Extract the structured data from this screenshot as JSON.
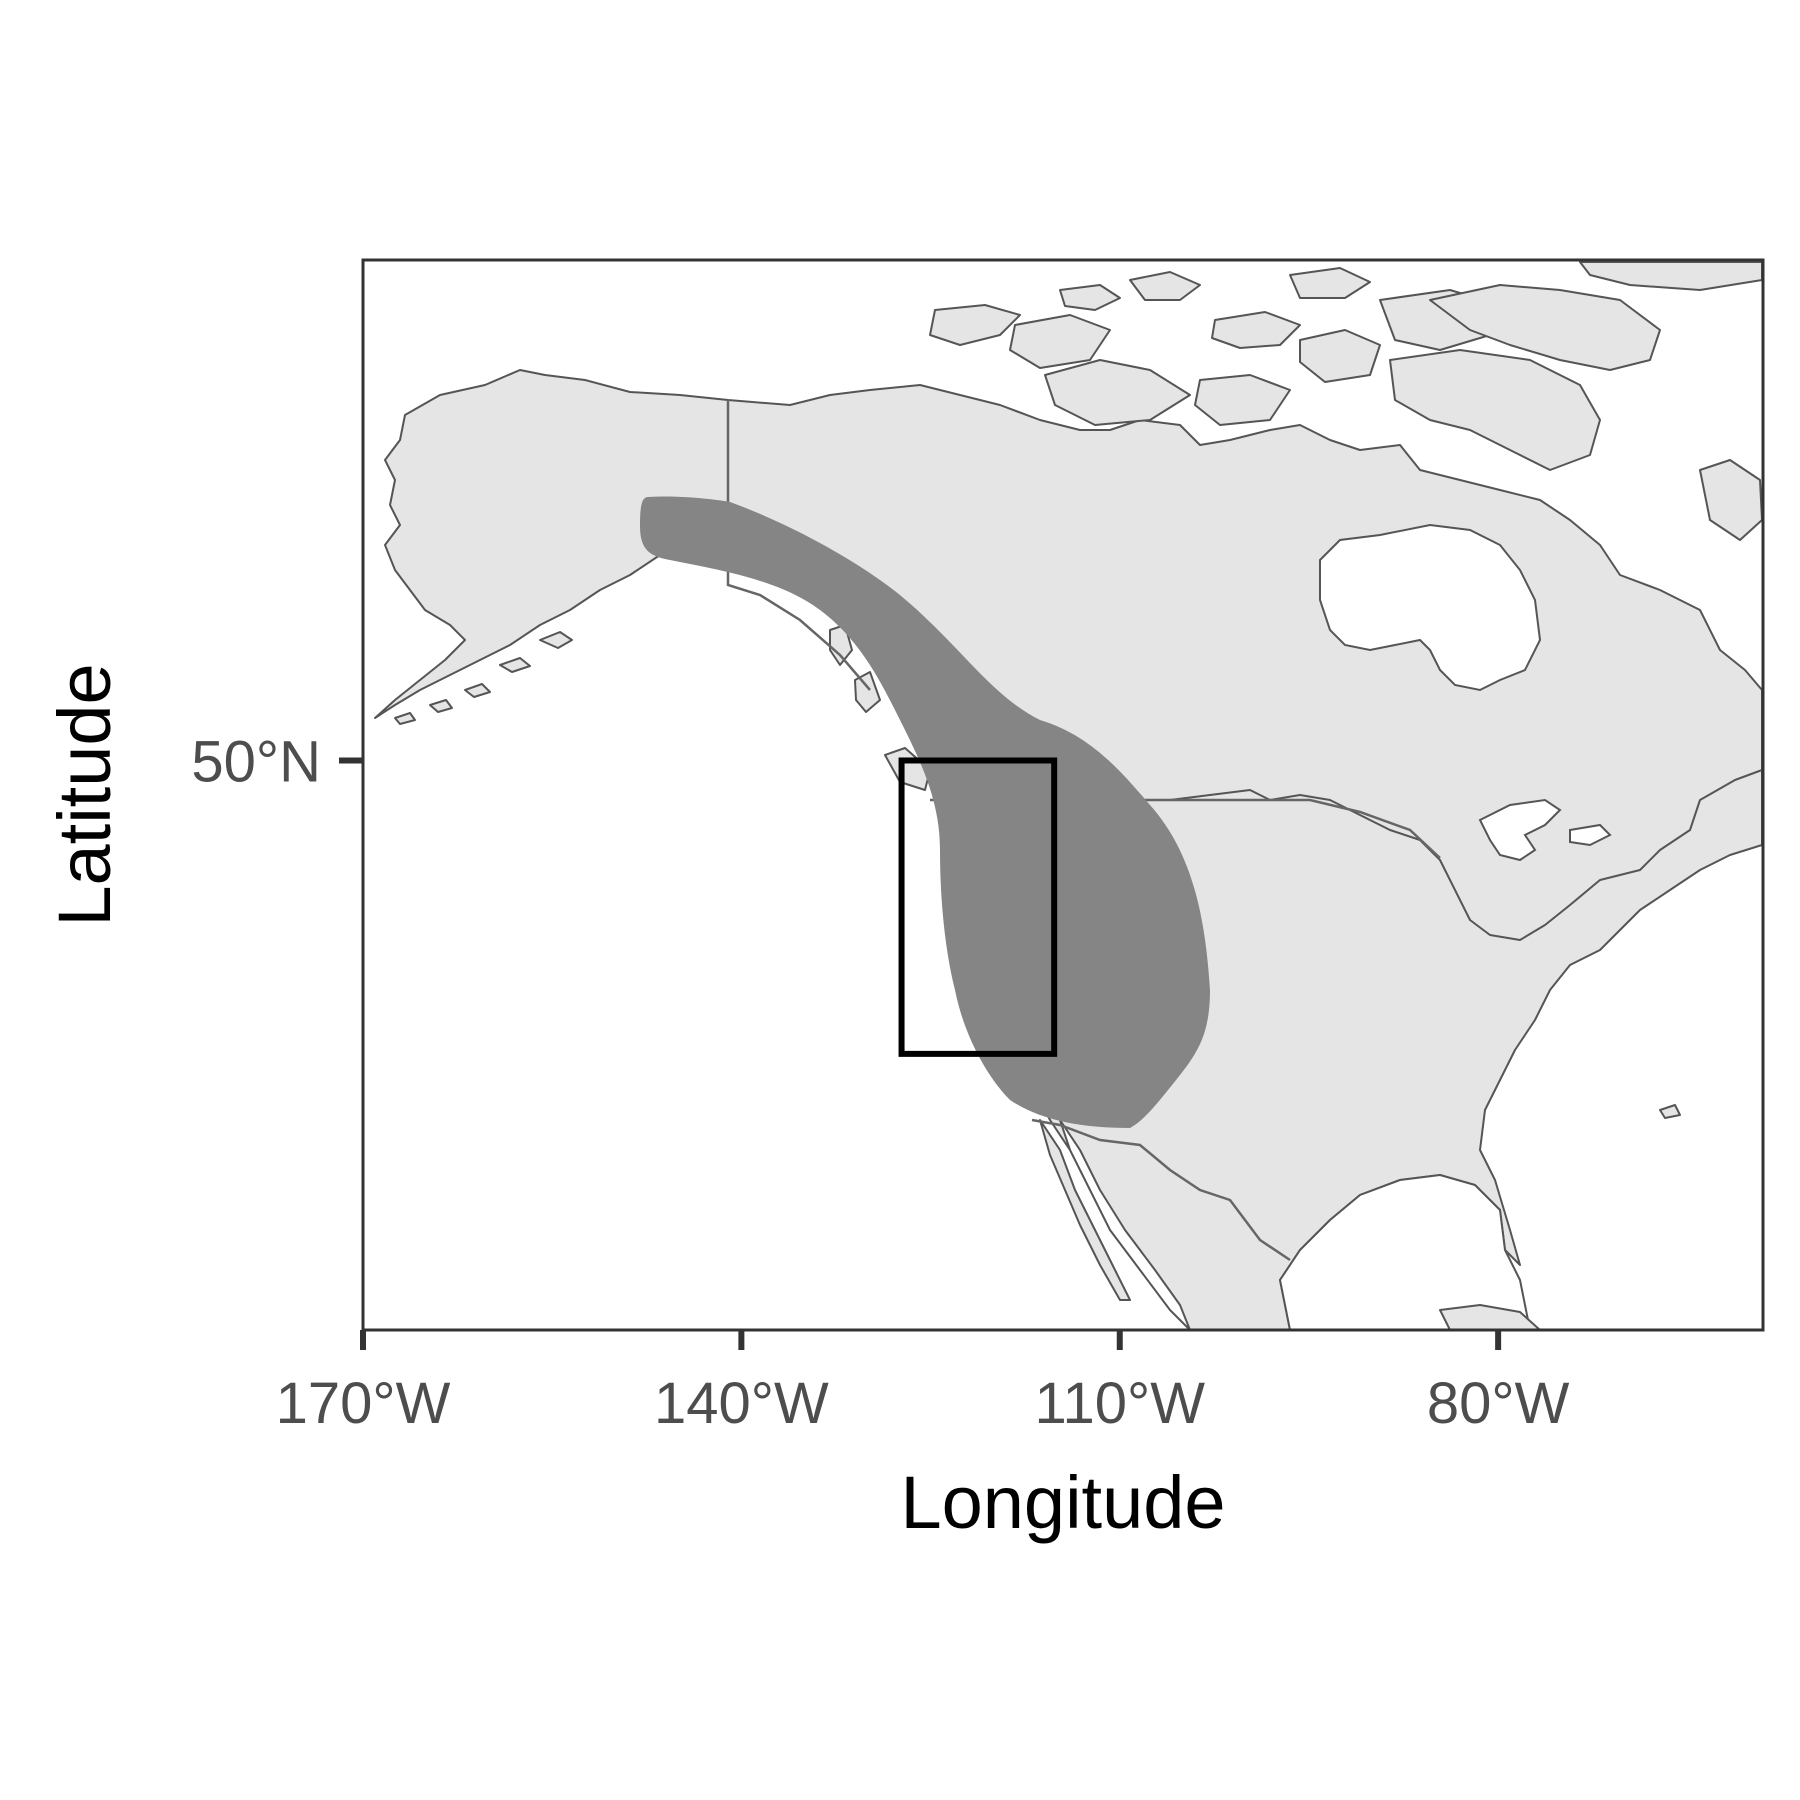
{
  "map": {
    "xlabel": "Longitude",
    "ylabel": "Latitude",
    "x_ticks": [
      "170°W",
      "140°W",
      "110°W",
      "80°W"
    ],
    "y_ticks": [
      "50°N"
    ],
    "colors": {
      "land": "#e5e5e5",
      "coastline": "#555555",
      "range_shading": "#858585",
      "study_box": "#000000",
      "frame": "#333333"
    },
    "extent": {
      "lon": [
        -170,
        -59
      ],
      "lat": [
        17,
        79
      ]
    },
    "study_area_box": {
      "lon": [
        -127.3,
        -115.2
      ],
      "lat": [
        33.0,
        50.0
      ]
    }
  }
}
